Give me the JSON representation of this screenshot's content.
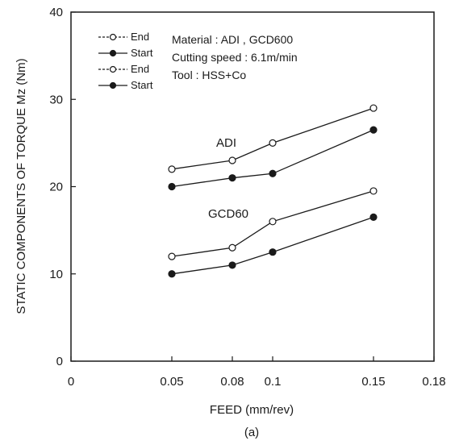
{
  "chart_data": {
    "type": "line",
    "caption": "(a)",
    "xlabel": "FEED (mm/rev)",
    "ylabel": "STATIC COMPONENTS OF TORQUE Mz (Nm)",
    "xlim": [
      0,
      0.18
    ],
    "ylim": [
      0,
      40
    ],
    "x_ticks": [
      0,
      0.05,
      0.08,
      0.1,
      0.15,
      0.18
    ],
    "x_tick_labels": [
      "0",
      "0.05",
      "0.08",
      "0.1",
      "0.15",
      "0.18"
    ],
    "y_ticks": [
      0,
      10,
      20,
      30,
      40
    ],
    "y_tick_labels": [
      "0",
      "10",
      "20",
      "30",
      "40"
    ],
    "grid": false,
    "legend_placement": "top-left",
    "annotation_lines": [
      "Material : ADI , GCD600",
      "Cutting speed : 6.1m/min",
      "Tool : HSS+Co"
    ],
    "series_labels": [
      {
        "text": "ADI"
      },
      {
        "text": "GCD60"
      }
    ],
    "series": [
      {
        "name": "End",
        "marker": "open-circle",
        "x": [
          0.05,
          0.08,
          0.1,
          0.15
        ],
        "y": [
          22,
          23,
          25,
          29
        ]
      },
      {
        "name": "Start",
        "marker": "filled-circle",
        "x": [
          0.05,
          0.08,
          0.1,
          0.15
        ],
        "y": [
          20,
          21,
          21.5,
          26.5
        ]
      },
      {
        "name": "End",
        "marker": "open-circle",
        "x": [
          0.05,
          0.08,
          0.1,
          0.15
        ],
        "y": [
          12,
          13,
          16,
          19.5
        ]
      },
      {
        "name": "Start",
        "marker": "filled-circle",
        "x": [
          0.05,
          0.08,
          0.1,
          0.15
        ],
        "y": [
          10,
          11,
          12.5,
          16.5
        ]
      }
    ],
    "colors": {
      "line": "#1a1a1a",
      "background": "#ffffff"
    }
  }
}
